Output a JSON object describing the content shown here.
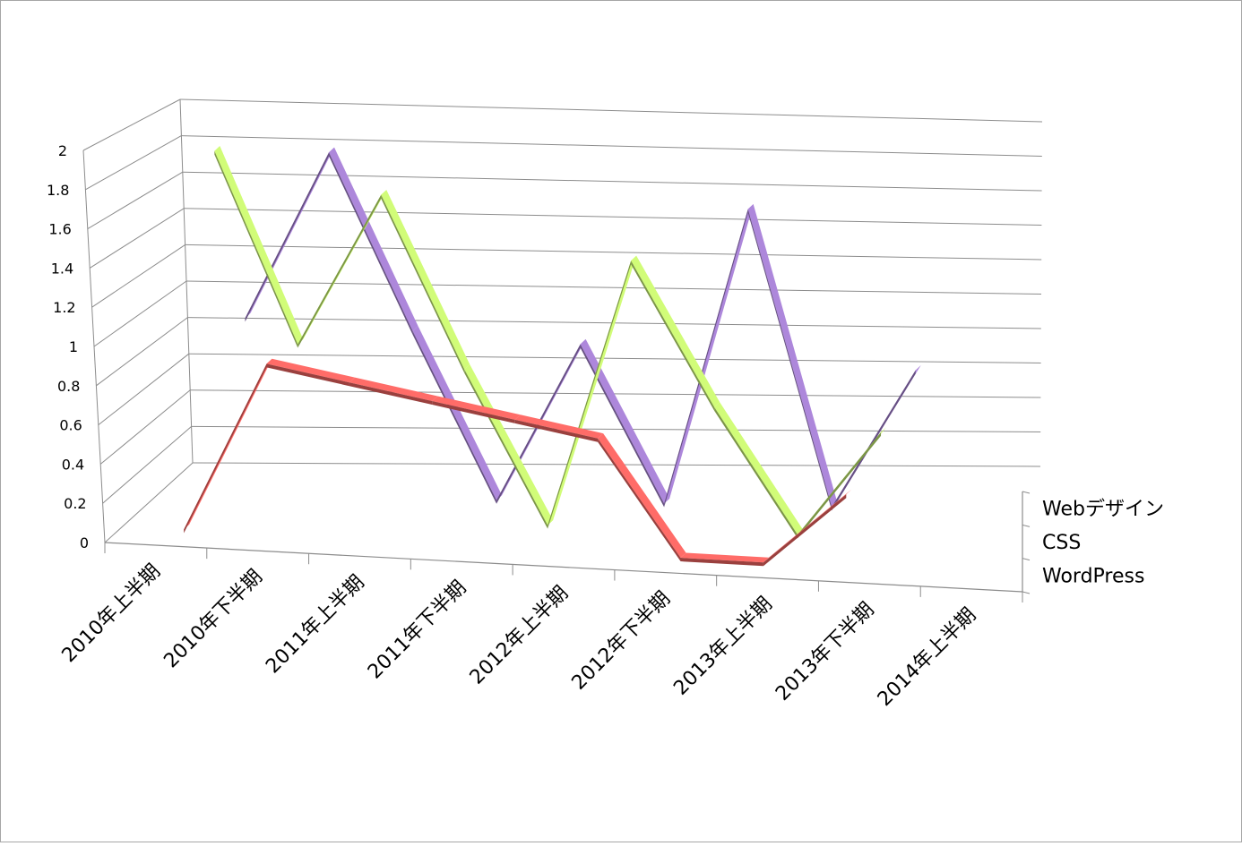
{
  "chart_data": {
    "type": "line",
    "variant": "3d-line",
    "categories": [
      "2010年上半期",
      "2010年下半期",
      "2011年上半期",
      "2011年下半期",
      "2012年上半期",
      "2012年下半期",
      "2013年上半期",
      "2013年下半期",
      "2014年上半期"
    ],
    "y_ticks": [
      "0",
      "0.2",
      "0.4",
      "0.6",
      "0.8",
      "1",
      "1.2",
      "1.4",
      "1.6",
      "1.8",
      "2"
    ],
    "ylim": [
      0,
      2
    ],
    "grid": true,
    "series": [
      {
        "name": "Webデザイン",
        "values": [
          1,
          2,
          1,
          0,
          1,
          0,
          2,
          0,
          1
        ],
        "color": "#8064a2"
      },
      {
        "name": "CSS",
        "values": [
          2,
          1,
          2,
          1,
          0,
          2,
          1,
          0,
          1
        ],
        "color": "#9bbb59"
      },
      {
        "name": "WordPress",
        "values": [
          0,
          1,
          1,
          1,
          1,
          1,
          0,
          0,
          1
        ],
        "color": "#c0504d"
      }
    ]
  }
}
